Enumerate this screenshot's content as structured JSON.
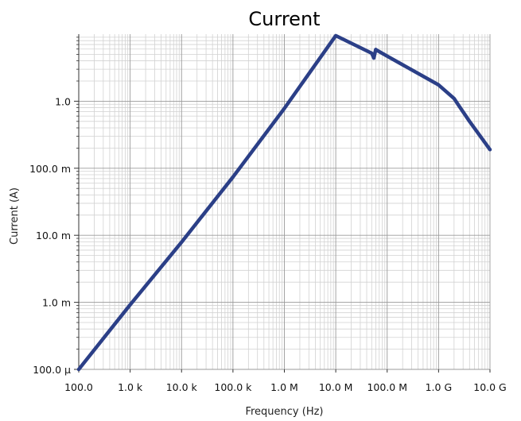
{
  "chart_data": {
    "type": "line",
    "title": "Current",
    "xlabel": "Frequency (Hz)",
    "ylabel": "Current (A)",
    "x_scale": "log",
    "y_scale": "log",
    "xlim": [
      100,
      10000000000
    ],
    "ylim": [
      0.0001,
      10
    ],
    "grid": true,
    "x_ticks": [
      {
        "value": 100,
        "label": "100.0"
      },
      {
        "value": 1000,
        "label": "1.0 k"
      },
      {
        "value": 10000,
        "label": "10.0 k"
      },
      {
        "value": 100000,
        "label": "100.0 k"
      },
      {
        "value": 1000000,
        "label": "1.0 M"
      },
      {
        "value": 10000000,
        "label": "10.0 M"
      },
      {
        "value": 100000000,
        "label": "100.0 M"
      },
      {
        "value": 1000000000,
        "label": "1.0 G"
      },
      {
        "value": 10000000000,
        "label": "10.0 G"
      }
    ],
    "y_ticks": [
      {
        "value": 0.0001,
        "label": "100.0 µ"
      },
      {
        "value": 0.001,
        "label": "1.0 m"
      },
      {
        "value": 0.01,
        "label": "10.0 m"
      },
      {
        "value": 0.1,
        "label": "100.0 m"
      },
      {
        "value": 1,
        "label": "1.0"
      }
    ],
    "series": [
      {
        "color": "#2b3f87",
        "points": [
          [
            100,
            0.0001
          ],
          [
            1000,
            0.00092
          ],
          [
            10000,
            0.0079
          ],
          [
            100000,
            0.074
          ],
          [
            1000000,
            0.78
          ],
          [
            10000000,
            9.5
          ],
          [
            50000000,
            5.2
          ],
          [
            55000000,
            4.4
          ],
          [
            60000000,
            5.9
          ],
          [
            62000000,
            5.8
          ],
          [
            100000000,
            4.7
          ],
          [
            1000000000,
            1.75
          ],
          [
            2000000000,
            1.1
          ],
          [
            2500000000,
            0.85
          ],
          [
            4000000000,
            0.5
          ],
          [
            10000000000,
            0.19
          ]
        ]
      }
    ]
  }
}
